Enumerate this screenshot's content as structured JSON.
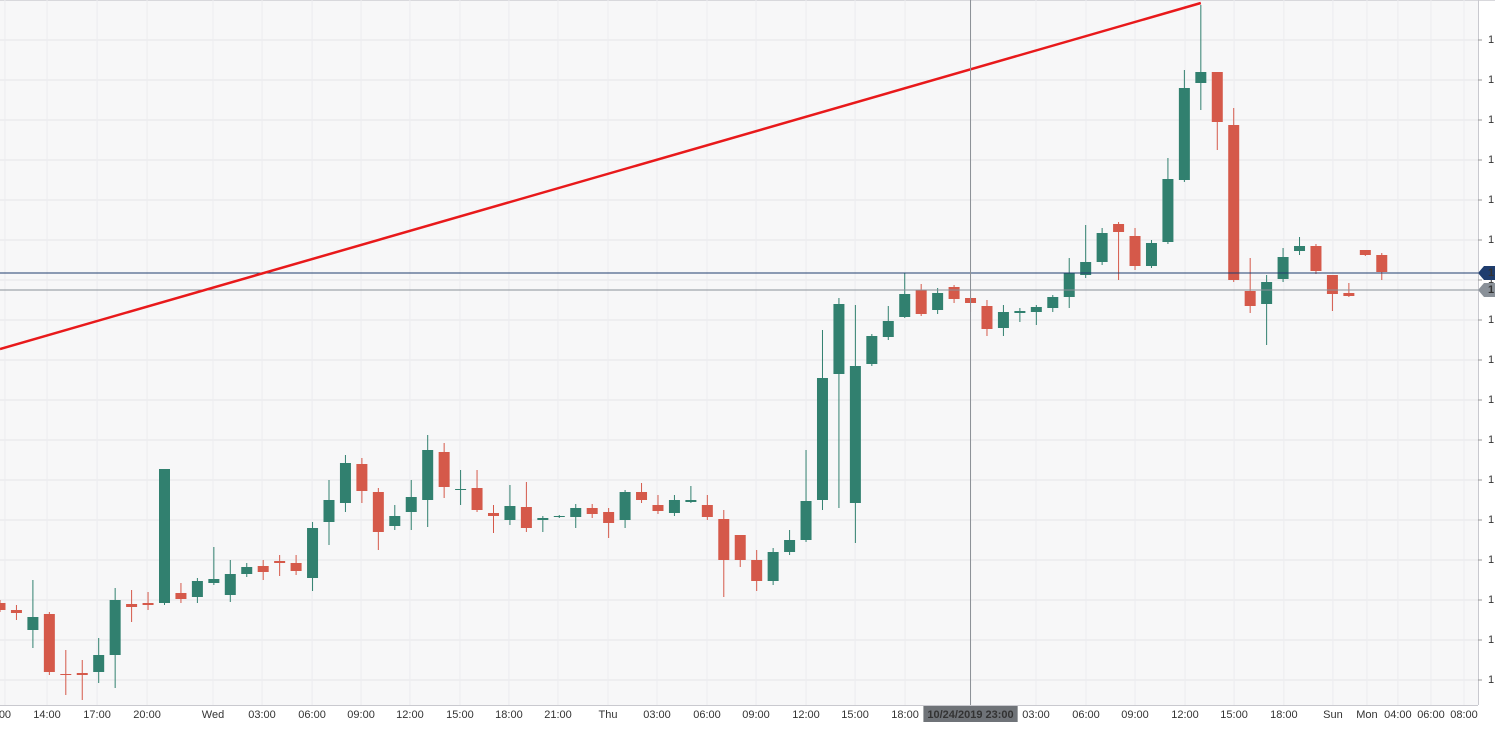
{
  "chart_data": {
    "type": "candlestick",
    "up_color": "#31806f",
    "down_color": "#d5594a",
    "grid": true,
    "x": [
      0,
      1,
      2,
      3,
      4,
      5,
      6,
      7,
      8,
      9,
      10,
      11,
      12,
      13,
      14,
      15,
      16,
      17,
      18,
      19,
      20,
      21,
      22,
      23,
      24,
      25,
      26,
      27,
      28,
      29,
      30,
      31,
      32,
      33,
      34,
      35,
      36,
      37,
      38,
      39,
      40,
      41,
      42,
      43,
      44,
      45,
      46,
      47,
      48,
      49,
      50,
      51,
      52,
      53,
      54,
      55,
      56,
      57,
      58,
      59,
      60,
      61,
      62,
      63,
      64,
      65,
      66,
      67,
      68,
      69,
      70,
      71,
      72,
      73,
      74,
      75,
      76,
      77,
      78,
      79,
      80,
      81,
      82,
      83,
      84
    ],
    "open": [
      117,
      110,
      90,
      106,
      46,
      47,
      48,
      65,
      116,
      117,
      117,
      127,
      123,
      137,
      125,
      146,
      154,
      159,
      157,
      142,
      198,
      217,
      256,
      228,
      194,
      208,
      220,
      268,
      230,
      232,
      207,
      200,
      213,
      200,
      203,
      203,
      212,
      208,
      200,
      228,
      215,
      207,
      218,
      215,
      201,
      185,
      160,
      139,
      168,
      180,
      220,
      346,
      217,
      356,
      383,
      403,
      430,
      410,
      433,
      422,
      414,
      392,
      407,
      408,
      412,
      423,
      445,
      458,
      496,
      484,
      454,
      478,
      540,
      637,
      648,
      595,
      429,
      416,
      441,
      469,
      474,
      445,
      427,
      470,
      465
    ],
    "high": [
      120,
      115,
      140,
      108,
      70,
      60,
      82,
      132,
      130,
      128,
      251,
      137,
      142,
      173,
      160,
      157,
      160,
      165,
      165,
      198,
      240,
      265,
      262,
      232,
      215,
      240,
      285,
      277,
      250,
      250,
      215,
      235,
      238,
      204,
      205,
      216,
      216,
      212,
      230,
      237,
      225,
      225,
      234,
      225,
      210,
      185,
      170,
      172,
      190,
      270,
      390,
      422,
      415,
      386,
      414,
      447,
      436,
      432,
      435,
      430,
      420,
      415,
      412,
      415,
      425,
      462,
      495,
      492,
      498,
      492,
      480,
      562,
      650,
      715,
      648,
      612,
      462,
      445,
      472,
      483,
      476,
      445,
      437,
      470,
      467
    ],
    "low": [
      108,
      100,
      72,
      45,
      25,
      20,
      37,
      32,
      98,
      110,
      115,
      117,
      117,
      135,
      118,
      143,
      140,
      144,
      145,
      129,
      175,
      208,
      217,
      170,
      190,
      190,
      193,
      222,
      215,
      208,
      187,
      195,
      188,
      188,
      202,
      192,
      202,
      182,
      192,
      217,
      206,
      204,
      217,
      200,
      123,
      153,
      129,
      135,
      165,
      178,
      210,
      212,
      177,
      354,
      380,
      402,
      404,
      406,
      417,
      408,
      384,
      384,
      398,
      395,
      408,
      412,
      442,
      455,
      440,
      450,
      452,
      476,
      538,
      610,
      570,
      438,
      407,
      375,
      438,
      465,
      446,
      409,
      423,
      464,
      440
    ],
    "close": [
      110,
      107,
      103,
      48,
      45,
      45,
      65,
      120,
      113,
      115,
      251,
      121,
      139,
      141,
      146,
      153,
      148,
      157,
      149,
      192,
      220,
      257,
      229,
      188,
      204,
      223,
      270,
      233,
      231,
      210,
      204,
      214,
      192,
      202,
      204,
      212,
      206,
      197,
      228,
      220,
      209,
      220,
      220,
      203,
      160,
      160,
      139,
      168,
      180,
      219,
      342,
      416,
      354,
      384,
      399,
      426,
      406,
      427,
      421,
      417,
      391,
      408,
      409,
      413,
      423,
      447,
      458,
      487,
      488,
      454,
      477,
      541,
      632,
      648,
      598,
      440,
      414,
      438,
      463,
      474,
      449,
      426,
      424,
      465,
      448
    ],
    "xlim": [
      0,
      89.85
    ],
    "ylim": [
      15,
      720
    ],
    "xticks": [
      {
        "value": 0.3,
        "label": "00"
      },
      {
        "value": 2.86,
        "label": "14:00"
      },
      {
        "value": 5.9,
        "label": "17:00"
      },
      {
        "value": 8.94,
        "label": "20:00"
      },
      {
        "value": 12.95,
        "label": "Wed"
      },
      {
        "value": 15.93,
        "label": "03:00"
      },
      {
        "value": 18.97,
        "label": "06:00"
      },
      {
        "value": 21.95,
        "label": "09:00"
      },
      {
        "value": 24.92,
        "label": "12:00"
      },
      {
        "value": 27.96,
        "label": "15:00"
      },
      {
        "value": 30.94,
        "label": "18:00"
      },
      {
        "value": 33.92,
        "label": "21:00"
      },
      {
        "value": 36.96,
        "label": "Thu"
      },
      {
        "value": 39.94,
        "label": "03:00"
      },
      {
        "value": 42.98,
        "label": "06:00"
      },
      {
        "value": 45.96,
        "label": "09:00"
      },
      {
        "value": 49,
        "label": "12:00"
      },
      {
        "value": 51.98,
        "label": "15:00"
      },
      {
        "value": 55.02,
        "label": "18:00"
      },
      {
        "value": 62.98,
        "label": "03:00"
      },
      {
        "value": 66.02,
        "label": "06:00"
      },
      {
        "value": 69,
        "label": "09:00"
      },
      {
        "value": 72.04,
        "label": "12:00"
      },
      {
        "value": 75.02,
        "label": "15:00"
      },
      {
        "value": 78.05,
        "label": "18:00"
      },
      {
        "value": 81.03,
        "label": "Sun"
      },
      {
        "value": 83.1,
        "label": "Mon"
      },
      {
        "value": 84.98,
        "label": "04:00"
      },
      {
        "value": 86.99,
        "label": "06:00"
      },
      {
        "value": 89,
        "label": "08:00"
      }
    ],
    "yticks": [
      {
        "value": 40,
        "label": "1"
      },
      {
        "value": 80,
        "label": "1"
      },
      {
        "value": 120,
        "label": "1"
      },
      {
        "value": 160,
        "label": "1"
      },
      {
        "value": 200,
        "label": "1"
      },
      {
        "value": 240,
        "label": "1"
      },
      {
        "value": 280,
        "label": "1"
      },
      {
        "value": 320,
        "label": "1"
      },
      {
        "value": 360,
        "label": "1"
      },
      {
        "value": 400,
        "label": "1"
      },
      {
        "value": 440,
        "label": "1"
      },
      {
        "value": 480,
        "label": "1"
      },
      {
        "value": 520,
        "label": "1"
      },
      {
        "value": 560,
        "label": "1"
      },
      {
        "value": 600,
        "label": "1"
      },
      {
        "value": 640,
        "label": "1"
      },
      {
        "value": 680,
        "label": "1"
      }
    ],
    "trendline": {
      "color": "#e8191b",
      "x": [
        0,
        73
      ],
      "y": [
        371,
        717
      ]
    },
    "price_lines": [
      {
        "value": 447,
        "label": "1",
        "color": "#1f3d6e"
      },
      {
        "value": 430,
        "label": "1",
        "color": "#8a9199"
      }
    ],
    "crosshair": {
      "x": 59,
      "label": "10/24/2019 23:00"
    }
  }
}
